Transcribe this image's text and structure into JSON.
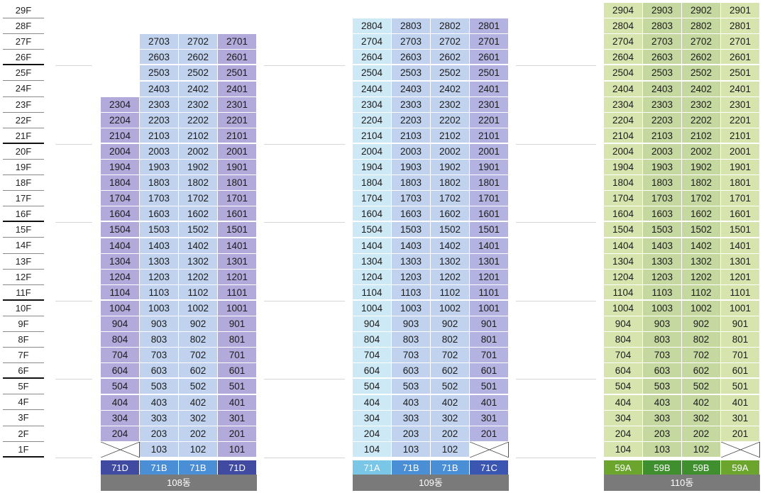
{
  "floors": [
    "29F",
    "28F",
    "27F",
    "26F",
    "25F",
    "24F",
    "23F",
    "22F",
    "21F",
    "20F",
    "19F",
    "18F",
    "17F",
    "16F",
    "15F",
    "14F",
    "13F",
    "12F",
    "11F",
    "10F",
    "9F",
    "8F",
    "7F",
    "6F",
    "5F",
    "4F",
    "3F",
    "2F",
    "1F"
  ],
  "buildings": [
    {
      "name": "108동",
      "label_color": "#7a7a7a",
      "units": [
        "04",
        "03",
        "02",
        "01"
      ],
      "types": [
        {
          "label": "71D",
          "color": "#3f4aa0"
        },
        {
          "label": "71B",
          "color": "#4a8fd6"
        },
        {
          "label": "71B",
          "color": "#4a8fd6"
        },
        {
          "label": "71D",
          "color": "#3f4aa0"
        }
      ],
      "column_colors": [
        "#b1aadb",
        "#c0d2ee",
        "#c0d2ee",
        "#b1aadb"
      ],
      "top_floors": [
        23,
        27,
        27,
        27
      ],
      "first_floor_empty": [
        true,
        false,
        false,
        false
      ]
    },
    {
      "name": "109동",
      "label_color": "#7a7a7a",
      "units": [
        "04",
        "03",
        "02",
        "01"
      ],
      "types": [
        {
          "label": "71A",
          "color": "#79c6e6"
        },
        {
          "label": "71B",
          "color": "#4a8fd6"
        },
        {
          "label": "71B",
          "color": "#4a8fd6"
        },
        {
          "label": "71C",
          "color": "#3a56b0"
        }
      ],
      "column_colors": [
        "#cde9f6",
        "#c0d2ee",
        "#c0d2ee",
        "#b3b2e0"
      ],
      "top_floors": [
        28,
        28,
        28,
        28
      ],
      "first_floor_empty": [
        false,
        false,
        false,
        true
      ]
    },
    {
      "name": "110동",
      "label_color": "#7a7a7a",
      "units": [
        "04",
        "03",
        "02",
        "01"
      ],
      "types": [
        {
          "label": "59A",
          "color": "#6ca52e"
        },
        {
          "label": "59B",
          "color": "#3f8f2e"
        },
        {
          "label": "59B",
          "color": "#3f8f2e"
        },
        {
          "label": "59A",
          "color": "#6ca52e"
        }
      ],
      "column_colors": [
        "#d8e4ae",
        "#c4d8a0",
        "#c4d8a0",
        "#d8e4ae"
      ],
      "top_floors": [
        29,
        29,
        29,
        29
      ],
      "first_floor_empty": [
        false,
        false,
        false,
        true
      ]
    }
  ]
}
